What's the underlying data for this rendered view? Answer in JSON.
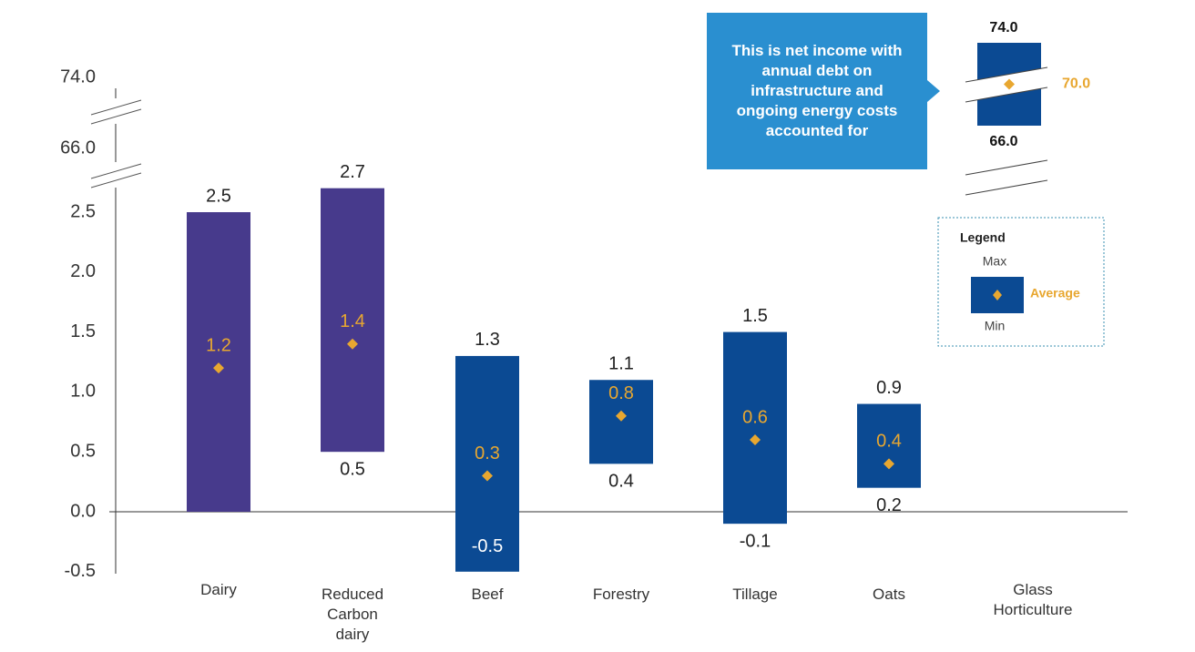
{
  "chart_data": {
    "type": "range_bar",
    "categories": [
      "Dairy",
      "Reduced Carbon dairy",
      "Beef",
      "Forestry",
      "Tillage",
      "Oats",
      "Glass Horticulture"
    ],
    "series": [
      {
        "name": "Max",
        "values": [
          2.5,
          2.7,
          1.3,
          1.1,
          1.5,
          0.9,
          74.0
        ],
        "value_labels": [
          "2.5",
          "2.7",
          "1.3",
          "1.1",
          "1.5",
          "0.9",
          "74.0"
        ]
      },
      {
        "name": "Min",
        "values": [
          0,
          0.5,
          -0.5,
          0.4,
          -0.1,
          0.2,
          66.0
        ],
        "value_labels": [
          null,
          "0.5",
          "-0.5",
          "0.4",
          "-0.1",
          "0.2",
          "66.0"
        ]
      },
      {
        "name": "Average",
        "color": "#e8a730",
        "values": [
          1.2,
          1.4,
          0.3,
          0.8,
          0.6,
          0.4,
          70.0
        ],
        "value_labels": [
          "1.2",
          "1.4",
          "0.3",
          "0.8",
          "0.6",
          "0.4",
          "70.0"
        ]
      }
    ],
    "bar_colors": [
      "#473a8c",
      "#473a8c",
      "#0b4a93",
      "#0b4a93",
      "#0b4a93",
      "#0b4a93",
      "#0b4a93"
    ],
    "ylim": [
      -0.5,
      74.0
    ],
    "axis_break": [
      2.75,
      66.0
    ],
    "yticks": [
      {
        "value": -0.5,
        "label": "-0.5"
      },
      {
        "value": 0,
        "label": "0.0"
      },
      0.5,
      {
        "value": 1,
        "label": "1.0"
      },
      1.5,
      {
        "value": 2,
        "label": "2.0"
      },
      2.5,
      {
        "value": 66,
        "label": "66.0"
      },
      {
        "value": 74,
        "label": "74.0"
      }
    ],
    "annotation": "This is net income with annual debt on infrastructure and ongoing energy costs accounted for",
    "legend_title": "Legend"
  }
}
